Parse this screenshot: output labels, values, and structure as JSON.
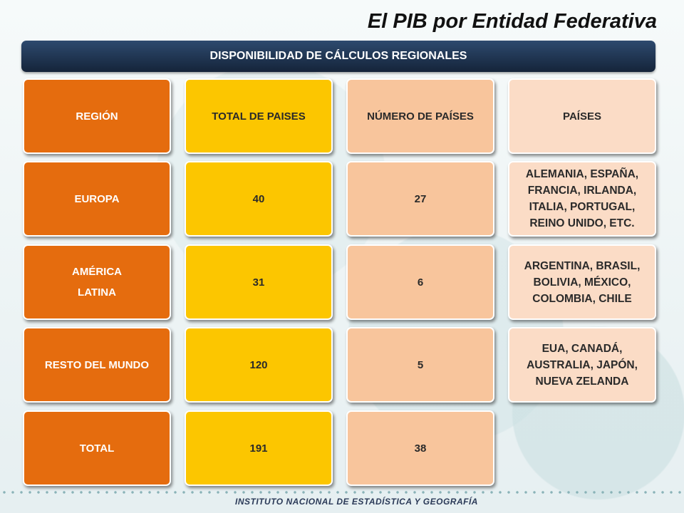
{
  "title": "El PIB por Entidad Federativa",
  "banner": "DISPONIBILIDAD DE CÁLCULOS REGIONALES",
  "headers": [
    "REGIÓN",
    "TOTAL DE PAISES",
    "NÚMERO DE PAÍSES",
    "PAÍSES"
  ],
  "rows": [
    {
      "region": "EUROPA",
      "total": "40",
      "numero": "27",
      "paises": "ALEMANIA, ESPAÑA, FRANCIA, IRLANDA, ITALIA, PORTUGAL, REINO UNIDO, ETC."
    },
    {
      "region_line1": "AMÉRICA",
      "region_line2": "LATINA",
      "total": "31",
      "numero": "6",
      "paises": "ARGENTINA, BRASIL, BOLIVIA, MÉXICO, COLOMBIA, CHILE"
    },
    {
      "region": "RESTO DEL MUNDO",
      "total": "120",
      "numero": "5",
      "paises": "EUA, CANADÁ, AUSTRALIA, JAPÓN, NUEVA ZELANDA"
    },
    {
      "region": "TOTAL",
      "total": "191",
      "numero": "38"
    }
  ],
  "footer": "INSTITUTO NACIONAL DE ESTADÍSTICA Y GEOGRAFÍA",
  "colors": {
    "banner": "#1e3350",
    "region": "#e56c0e",
    "total": "#fcc600",
    "numero": "#f8c59c",
    "paises": "#fbdcc6"
  }
}
